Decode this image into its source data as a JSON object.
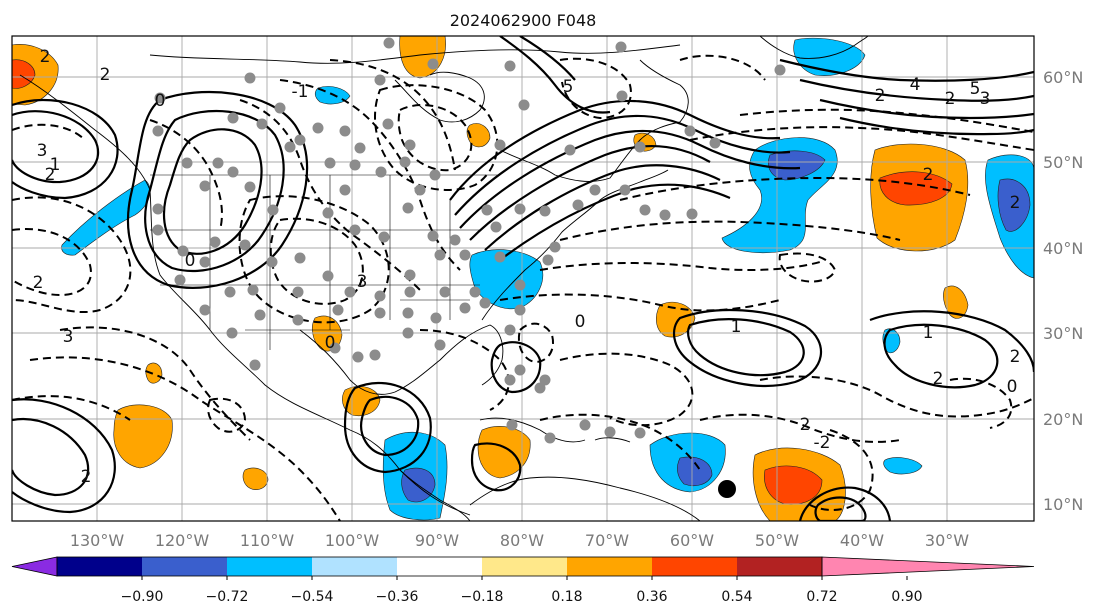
{
  "map": {
    "title": "2024062900 F048",
    "grid": true,
    "lon_labels": [
      "130°W",
      "120°W",
      "110°W",
      "100°W",
      "90°W",
      "80°W",
      "70°W",
      "60°W",
      "50°W",
      "40°W",
      "30°W"
    ],
    "lat_labels": [
      "60°N",
      "50°N",
      "40°N",
      "30°N",
      "20°N",
      "10°N"
    ],
    "contour_labels": [
      "2",
      "2",
      "2",
      "0",
      "0",
      "1",
      "3",
      "2",
      "3",
      "3",
      "-1",
      "0",
      "5",
      "4",
      "5",
      "2",
      "3",
      "2",
      "2",
      "2",
      "1",
      "1",
      "2",
      "0",
      "-2",
      "2",
      "0",
      "2",
      "2"
    ],
    "colorbar": {
      "tick_labels": [
        "−0.90",
        "−0.72",
        "−0.54",
        "−0.36",
        "−0.18",
        "0.18",
        "0.36",
        "0.54",
        "0.72",
        "0.90"
      ],
      "colors": [
        "#8a2be2",
        "#00008b",
        "#3a5fcd",
        "#00bfff",
        "#b0e2ff",
        "#ffffff",
        "#ffe88a",
        "#ffa500",
        "#ff4500",
        "#b22222",
        "#ff85b0"
      ]
    }
  }
}
